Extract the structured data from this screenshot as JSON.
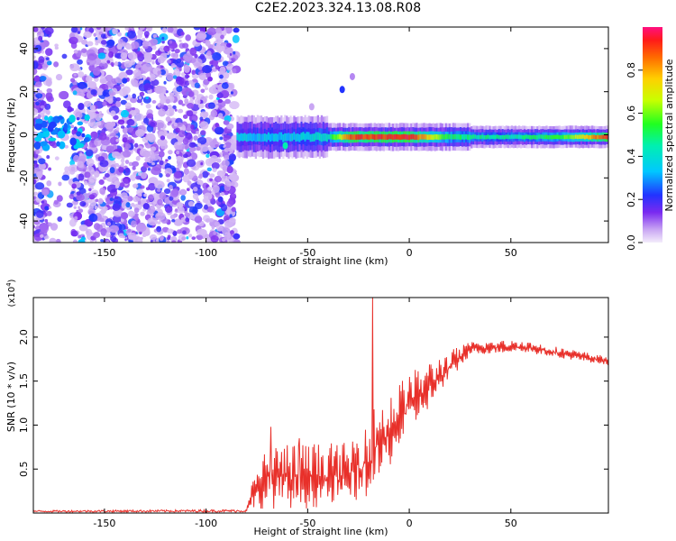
{
  "title": "C2E2.2023.324.13.08.R08",
  "chart_data": [
    {
      "type": "heatmap",
      "name": "spectrum",
      "xlabel": "Height of straight line (km)",
      "ylabel": "Frequency (Hz)",
      "xlim": [
        -185,
        98
      ],
      "ylim": [
        -50,
        50
      ],
      "xticks": [
        -150,
        -100,
        -50,
        0,
        50
      ],
      "yticks": [
        -40,
        -20,
        0,
        20,
        40
      ],
      "colorbar": {
        "label": "Normalized spectral amplitude",
        "range": [
          0.0,
          1.0
        ],
        "ticks": [
          0.0,
          0.2,
          0.4,
          0.6,
          0.8
        ],
        "tick_labels": [
          "0.0",
          "0.2",
          "0.4",
          "0.6",
          "0.8"
        ]
      },
      "regions": [
        {
          "x_range": [
            -185,
            -85
          ],
          "freq_range": [
            -50,
            50
          ],
          "amplitude": 0.15,
          "description": "broadband noise"
        },
        {
          "x_range": [
            -85,
            98
          ],
          "center_freq": 0,
          "amplitude_profile": [
            {
              "x": -85,
              "a": 0.35
            },
            {
              "x": -60,
              "a": 0.35
            },
            {
              "x": -40,
              "a": 0.45
            },
            {
              "x": -30,
              "a": 0.9
            },
            {
              "x": 0,
              "a": 0.95
            },
            {
              "x": 20,
              "a": 0.5
            },
            {
              "x": 50,
              "a": 0.45
            },
            {
              "x": 75,
              "a": 0.55
            },
            {
              "x": 98,
              "a": 0.95
            }
          ]
        }
      ]
    },
    {
      "type": "line",
      "name": "snr",
      "xlabel": "Height of straight line (km)",
      "ylabel": "SNR (10 * v/v)",
      "y_multiplier": "(x10",
      "y_multiplier_exp": "4",
      "y_multiplier_close": ")",
      "xlim": [
        -185,
        98
      ],
      "ylim": [
        0,
        2.45
      ],
      "xticks": [
        -150,
        -100,
        -50,
        0,
        50
      ],
      "yticks": [
        0.5,
        1.0,
        1.5,
        2.0
      ],
      "ytick_labels": [
        "0.5",
        "1.0",
        "1.5",
        "2.0"
      ],
      "color": "#e8302a",
      "envelope": [
        {
          "x": -185,
          "lo": 0.01,
          "hi": 0.03
        },
        {
          "x": -80,
          "lo": 0.01,
          "hi": 0.04
        },
        {
          "x": -78,
          "lo": 0.05,
          "hi": 0.3
        },
        {
          "x": -70,
          "lo": 0.05,
          "hi": 0.8
        },
        {
          "x": -50,
          "lo": 0.05,
          "hi": 0.8
        },
        {
          "x": -30,
          "lo": 0.1,
          "hi": 0.8
        },
        {
          "x": -18,
          "lo": 0.2,
          "hi": 1.2
        },
        {
          "x": 0,
          "lo": 0.9,
          "hi": 1.6
        },
        {
          "x": 20,
          "lo": 1.5,
          "hi": 1.85
        },
        {
          "x": 30,
          "lo": 1.8,
          "hi": 1.95
        },
        {
          "x": 55,
          "lo": 1.83,
          "hi": 1.97
        },
        {
          "x": 98,
          "lo": 1.68,
          "hi": 1.78
        }
      ],
      "spikes": [
        {
          "x": -68,
          "y": 0.98
        },
        {
          "x": -54,
          "y": 0.85
        },
        {
          "x": -18,
          "y": 2.45
        }
      ]
    }
  ]
}
